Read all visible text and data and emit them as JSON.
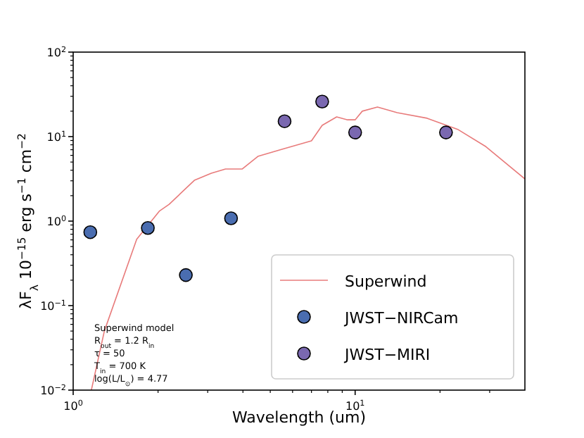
{
  "chart_data": {
    "type": "scatter",
    "xlabel": "Wavelength (um)",
    "ylabel": "λF$_{λ}$ 10$^{−15}$ erg s$^{−1}$ cm$^{−2}$",
    "log": "xy",
    "xlim": [
      1,
      40
    ],
    "ylim": [
      0.01,
      100
    ],
    "xticks": [
      {
        "value": 1,
        "label": "10$^{0}$"
      },
      {
        "value": 10,
        "label": "10$^{1}$"
      }
    ],
    "yticks": [
      {
        "value": 0.01,
        "label": "10$^{−2}$"
      },
      {
        "value": 0.1,
        "label": "10$^{−1}$"
      },
      {
        "value": 1,
        "label": "10$^{0}$"
      },
      {
        "value": 10,
        "label": "10$^{1}$"
      },
      {
        "value": 100,
        "label": "10$^{2}$"
      }
    ],
    "legend": "bottom right",
    "marker": "circle",
    "annotations": [
      "Superwind model",
      "R$_{out}$ = 1.2 R$_{in}$",
      "τ = 50",
      "T$_{in}$ = 700 K",
      "log(L/L$_{⊙}$) = 4.77"
    ],
    "series": [
      {
        "name": "Superwind",
        "type": "line",
        "color": "#e87b7b",
        "line_style": "solid",
        "marker": "none",
        "x": [
          1.16,
          1.29,
          1.68,
          2.02,
          2.19,
          2.69,
          3.09,
          3.47,
          3.98,
          4.52,
          5.5,
          7.0,
          7.64,
          8.6,
          9.4,
          10,
          10.6,
          12.0,
          14.1,
          18.0,
          23.2,
          29.1,
          40
        ],
        "values": [
          0.01,
          0.05,
          0.61,
          1.31,
          1.58,
          3.04,
          3.69,
          4.14,
          4.14,
          5.84,
          7.08,
          8.9,
          13.6,
          17.1,
          15.8,
          15.8,
          20,
          22.4,
          19.2,
          16.5,
          12.1,
          7.6,
          3.16
        ]
      },
      {
        "name": "JWST−NIRCam",
        "color": "#4a6db0",
        "x": [
          1.15,
          1.84,
          2.51,
          3.63
        ],
        "values": [
          0.74,
          0.83,
          0.23,
          1.08
        ]
      },
      {
        "name": "JWST−MIRI",
        "color": "#7a68b0",
        "x": [
          5.62,
          7.64,
          10,
          21
        ],
        "values": [
          15.2,
          26,
          11.2,
          11.2
        ]
      }
    ]
  }
}
